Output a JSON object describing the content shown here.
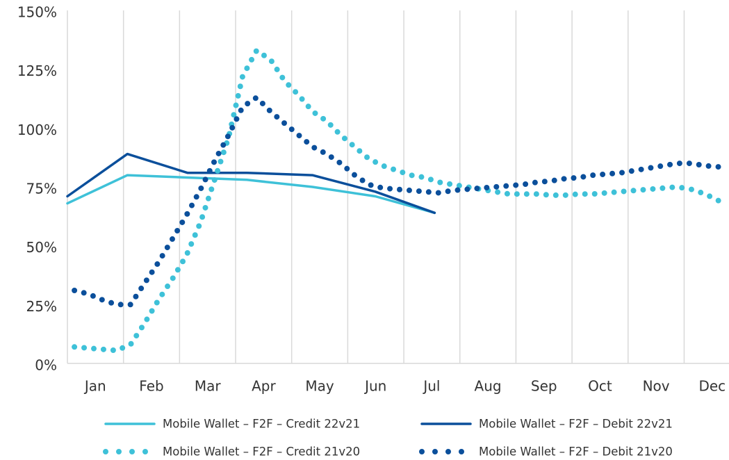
{
  "chart_data": {
    "type": "line",
    "categories": [
      "Jan",
      "Feb",
      "Mar",
      "Apr",
      "May",
      "Jun",
      "Jul",
      "Aug",
      "Sep",
      "Oct",
      "Nov",
      "Dec"
    ],
    "xlim": [
      0,
      11.8
    ],
    "xticks": [
      0,
      1,
      2,
      3,
      4,
      5,
      6,
      7,
      8,
      9,
      10,
      11
    ],
    "ylim": [
      0,
      150
    ],
    "yticks": [
      {
        "value": 0,
        "label": "0%"
      },
      {
        "value": 25,
        "label": "25%"
      },
      {
        "value": 50,
        "label": "50%"
      },
      {
        "value": 75,
        "label": "75%"
      },
      {
        "value": 100,
        "label": "100%"
      },
      {
        "value": 125,
        "label": "125%"
      },
      {
        "value": 150,
        "label": "150%"
      }
    ],
    "grid": "x",
    "series": [
      {
        "name": "Mobile Wallet – F2F – Credit 22v21",
        "color": "#3ec1d8",
        "style": "solid",
        "x": [
          0,
          1.07,
          2.14,
          3.2,
          4.37,
          5.49,
          6.55
        ],
        "values": [
          68,
          80,
          79,
          78,
          75,
          71,
          64
        ]
      },
      {
        "name": "Mobile Wallet – F2F – Debit 22v21",
        "color": "#0b4f9b",
        "style": "solid",
        "x": [
          0,
          1.07,
          2.14,
          3.2,
          4.37,
          5.49,
          6.55
        ],
        "values": [
          71,
          89,
          81,
          81,
          80,
          73,
          64
        ]
      },
      {
        "name": "Mobile Wallet – F2F – Credit 21v20",
        "color": "#3ec1d8",
        "style": "dotted",
        "x": [
          0.125,
          0.375,
          0.625,
          0.875,
          1.125,
          1.375,
          1.625,
          1.875,
          2.125,
          2.375,
          2.625,
          2.875,
          3.125,
          3.375,
          3.625,
          3.875,
          4.125,
          4.375,
          4.625,
          4.875,
          5.125,
          5.375,
          5.625,
          5.875,
          6.125,
          6.375,
          6.625,
          6.875,
          7.125,
          7.375,
          7.625,
          7.875,
          8.125,
          8.375,
          8.625,
          8.875,
          9.125,
          9.375,
          9.625,
          9.875,
          10.125,
          10.375,
          10.625,
          10.875,
          11.125,
          11.375,
          11.625
        ],
        "values": [
          7,
          6.5,
          6,
          5.5,
          8,
          17,
          27,
          36,
          46,
          60,
          78,
          96,
          122,
          133,
          129,
          120,
          114,
          107,
          103,
          97,
          92,
          87,
          84,
          82,
          80,
          79,
          77,
          76,
          75,
          74,
          73,
          72,
          72,
          72,
          71.5,
          71.5,
          72,
          72,
          72.5,
          73,
          73.5,
          74,
          74.5,
          75,
          74,
          72,
          69
        ]
      },
      {
        "name": "Mobile Wallet – F2F – Debit 21v20",
        "color": "#0b4f9b",
        "style": "dotted",
        "x": [
          0.125,
          0.375,
          0.625,
          0.875,
          1.125,
          1.375,
          1.625,
          1.875,
          2.125,
          2.375,
          2.625,
          2.875,
          3.125,
          3.375,
          3.625,
          3.875,
          4.125,
          4.375,
          4.625,
          4.875,
          5.125,
          5.375,
          5.625,
          5.875,
          6.125,
          6.375,
          6.625,
          6.875,
          7.125,
          7.375,
          7.625,
          7.875,
          8.125,
          8.375,
          8.625,
          8.875,
          9.125,
          9.375,
          9.625,
          9.875,
          10.125,
          10.375,
          10.625,
          10.875,
          11.125,
          11.375,
          11.625
        ],
        "values": [
          31,
          29.5,
          27,
          25,
          25,
          34,
          43,
          53,
          63,
          74,
          86,
          97,
          109,
          113,
          107,
          102,
          97,
          92,
          89,
          85,
          80,
          76,
          74.5,
          74,
          73.5,
          73,
          72.5,
          73.5,
          74,
          74.5,
          75,
          75.5,
          76,
          77,
          77.5,
          78.5,
          79,
          80,
          80.5,
          81,
          82,
          83,
          84,
          85,
          85,
          84,
          83.5
        ]
      }
    ]
  }
}
